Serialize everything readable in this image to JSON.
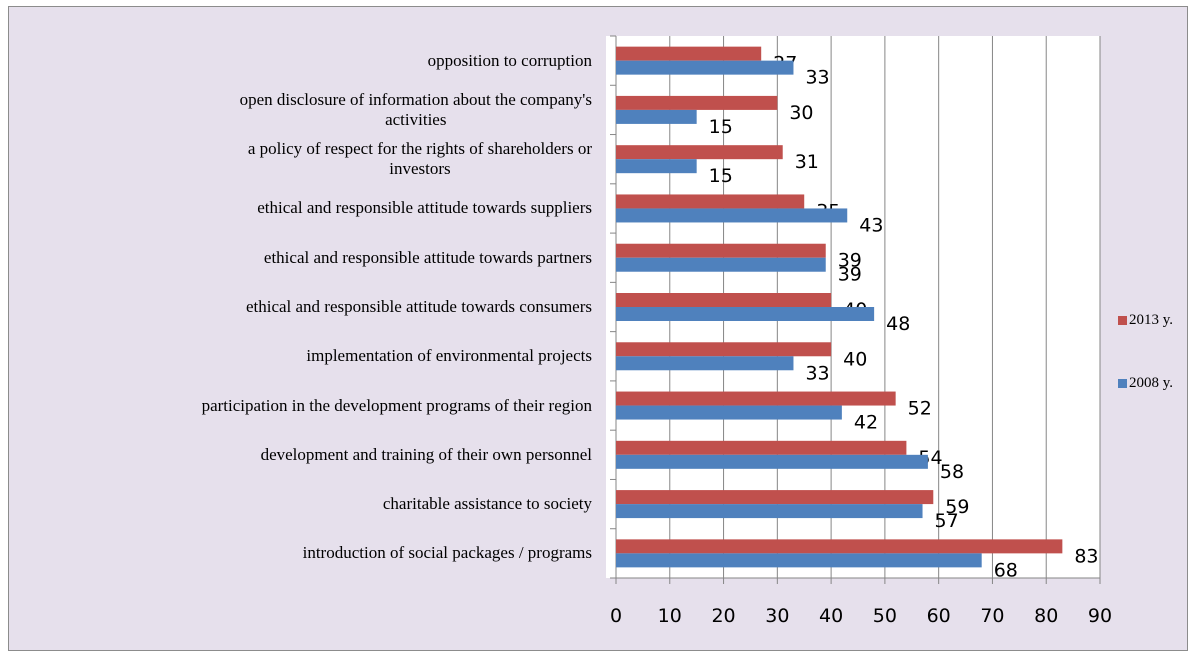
{
  "chart_data": {
    "type": "bar",
    "orientation": "horizontal",
    "categories": [
      "opposition to corruption",
      "open disclosure of information about the company's\nactivities",
      "a policy of respect for the rights of shareholders or\ninvestors",
      "ethical and responsible attitude towards suppliers",
      "ethical and responsible attitude towards partners",
      "ethical and responsible attitude towards consumers",
      "implementation of environmental projects",
      "participation in the development programs of their region",
      "development and training of their own personnel",
      "charitable assistance to society",
      "introduction of social packages / programs"
    ],
    "series": [
      {
        "name": "2013 y.",
        "color": "#c0504d",
        "values": [
          27,
          30,
          31,
          35,
          39,
          40,
          40,
          52,
          54,
          59,
          83
        ]
      },
      {
        "name": "2008 y.",
        "color": "#4f81bd",
        "values": [
          33,
          15,
          15,
          43,
          39,
          48,
          33,
          42,
          58,
          57,
          68
        ]
      }
    ],
    "xlim": [
      0,
      90
    ],
    "xticks": [
      0,
      10,
      20,
      30,
      40,
      50,
      60,
      70,
      80,
      90
    ],
    "grid": true,
    "legend": "right"
  }
}
